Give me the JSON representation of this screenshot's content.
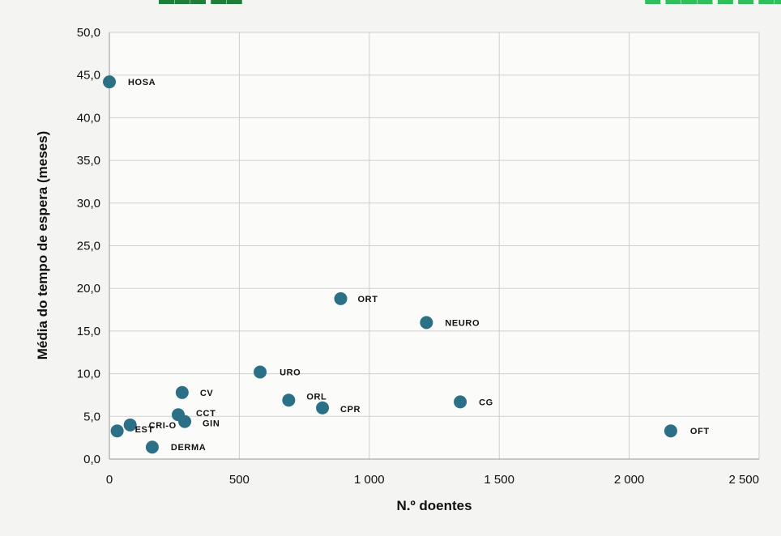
{
  "colors": {
    "background": "#f4f4f2",
    "plot_background": "#fbfbfa",
    "grid": "#cfcfcf",
    "marker": "#2b7087",
    "text": "#111111",
    "title_partial": "#2fbf5a"
  },
  "chart_data": {
    "type": "scatter",
    "title": "",
    "xlabel": "N.º doentes",
    "ylabel": "Média do tempo de espera (meses)",
    "xlim": [
      0,
      2500
    ],
    "ylim": [
      0,
      50
    ],
    "x_ticks": [
      0,
      500,
      1000,
      1500,
      2000,
      2500
    ],
    "x_tick_labels": [
      "0",
      "500",
      "1 000",
      "1 500",
      "2 000",
      "2 500"
    ],
    "y_ticks": [
      0,
      5,
      10,
      15,
      20,
      25,
      30,
      35,
      40,
      45,
      50
    ],
    "y_tick_labels": [
      "0,0",
      "5,0",
      "10,0",
      "15,0",
      "20,0",
      "25,0",
      "30,0",
      "35,0",
      "40,0",
      "45,0",
      "50,0"
    ],
    "grid": true,
    "legend": "none",
    "points": [
      {
        "label": "HOSA",
        "x": 0,
        "y": 44.2
      },
      {
        "label": "ORT",
        "x": 890,
        "y": 18.8
      },
      {
        "label": "NEURO",
        "x": 1220,
        "y": 16.0
      },
      {
        "label": "URO",
        "x": 580,
        "y": 10.2
      },
      {
        "label": "ORL",
        "x": 690,
        "y": 6.9
      },
      {
        "label": "CPR",
        "x": 820,
        "y": 6.0
      },
      {
        "label": "CG",
        "x": 1350,
        "y": 6.7
      },
      {
        "label": "OFT",
        "x": 2160,
        "y": 3.3
      },
      {
        "label": "CV",
        "x": 280,
        "y": 7.8
      },
      {
        "label": "CCT",
        "x": 265,
        "y": 5.2
      },
      {
        "label": "GIN",
        "x": 290,
        "y": 4.4
      },
      {
        "label": "CRI-O",
        "x": 80,
        "y": 4.0
      },
      {
        "label": "EST",
        "x": 30,
        "y": 3.3
      },
      {
        "label": "DERMA",
        "x": 165,
        "y": 1.4
      }
    ]
  }
}
